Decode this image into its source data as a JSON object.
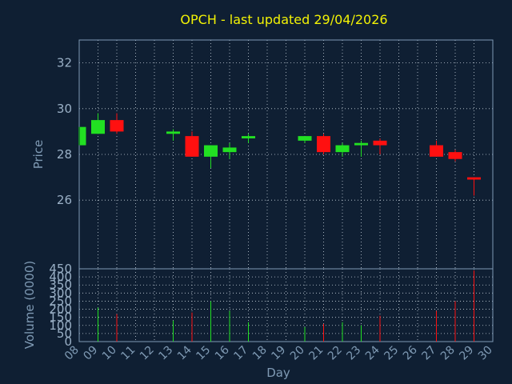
{
  "chart_data": {
    "type": "candlestick",
    "title": "OPCH - last updated 29/04/2026",
    "xlabel": "Day",
    "price_panel": {
      "ylabel": "Price",
      "ylim": [
        23,
        33
      ],
      "yticks": [
        26,
        28,
        30,
        32
      ]
    },
    "volume_panel": {
      "ylabel": "Volume (0000)",
      "ylim": [
        0,
        450
      ],
      "yticks": [
        0,
        50,
        100,
        150,
        200,
        250,
        300,
        350,
        400,
        450
      ]
    },
    "x_ticks": [
      "08",
      "09",
      "10",
      "11",
      "12",
      "13",
      "14",
      "15",
      "16",
      "17",
      "18",
      "19",
      "20",
      "21",
      "22",
      "23",
      "24",
      "25",
      "26",
      "27",
      "28",
      "29",
      "30"
    ],
    "candles": [
      {
        "day": "08",
        "open": 28.4,
        "high": 29.2,
        "low": 28.4,
        "close": 29.2,
        "volume": 0
      },
      {
        "day": "09",
        "open": 28.9,
        "high": 29.8,
        "low": 28.9,
        "close": 29.5,
        "volume": 210
      },
      {
        "day": "10",
        "open": 29.5,
        "high": 29.8,
        "low": 28.9,
        "close": 29.0,
        "volume": 170
      },
      {
        "day": "13",
        "open": 28.9,
        "high": 29.1,
        "low": 28.6,
        "close": 29.0,
        "volume": 130
      },
      {
        "day": "14",
        "open": 28.8,
        "high": 29.0,
        "low": 27.9,
        "close": 27.9,
        "volume": 180
      },
      {
        "day": "15",
        "open": 27.9,
        "high": 28.4,
        "low": 27.4,
        "close": 28.4,
        "volume": 250
      },
      {
        "day": "16",
        "open": 28.1,
        "high": 28.5,
        "low": 27.8,
        "close": 28.3,
        "volume": 190
      },
      {
        "day": "17",
        "open": 28.7,
        "high": 28.9,
        "low": 28.5,
        "close": 28.8,
        "volume": 120
      },
      {
        "day": "20",
        "open": 28.6,
        "high": 28.8,
        "low": 28.5,
        "close": 28.8,
        "volume": 90
      },
      {
        "day": "21",
        "open": 28.8,
        "high": 28.9,
        "low": 28.0,
        "close": 28.1,
        "volume": 110
      },
      {
        "day": "22",
        "open": 28.1,
        "high": 28.5,
        "low": 27.9,
        "close": 28.4,
        "volume": 120
      },
      {
        "day": "23",
        "open": 28.4,
        "high": 28.6,
        "low": 27.9,
        "close": 28.5,
        "volume": 100
      },
      {
        "day": "24",
        "open": 28.6,
        "high": 28.7,
        "low": 28.0,
        "close": 28.4,
        "volume": 160
      },
      {
        "day": "27",
        "open": 28.4,
        "high": 28.6,
        "low": 27.9,
        "close": 27.9,
        "volume": 190
      },
      {
        "day": "28",
        "open": 28.1,
        "high": 28.2,
        "low": 27.7,
        "close": 27.8,
        "volume": 250
      },
      {
        "day": "29",
        "open": 27.0,
        "high": 27.0,
        "low": 26.2,
        "close": 26.9,
        "volume": 440
      }
    ],
    "colors": {
      "up": "#22e022",
      "down": "#ff1010",
      "background": "#0f1f33",
      "grid": "#c8d2dc",
      "axis": "#7f9ab4",
      "title": "#f2f205"
    }
  }
}
